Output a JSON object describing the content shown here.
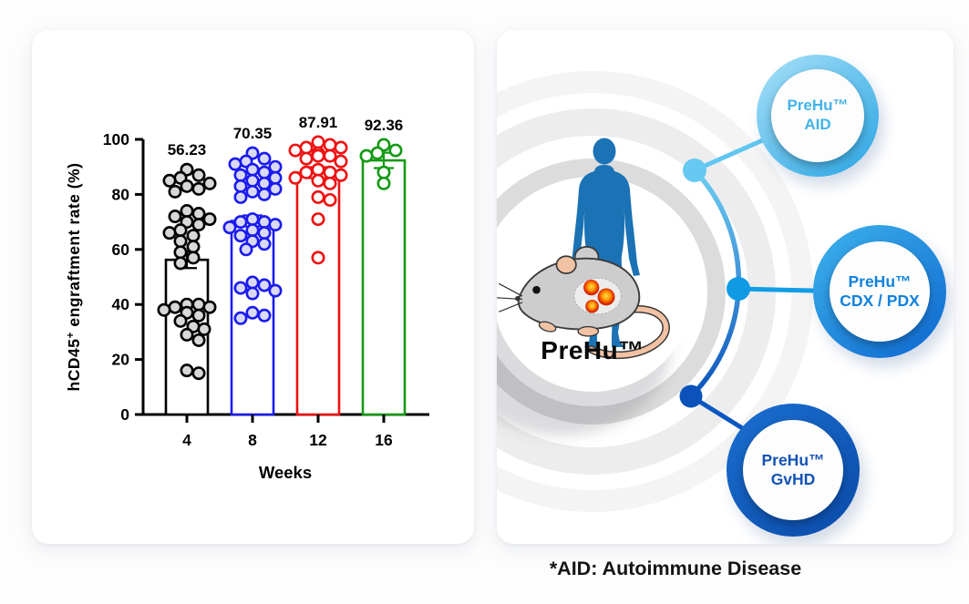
{
  "caption": "*AID: Autoimmune Disease",
  "chart_data": {
    "type": "bar",
    "subtype": "bar_with_beeswarm_scatter_and_error_bars",
    "title": "",
    "xlabel": "Weeks",
    "ylabel": "hCD45+ engraftment rate (%)",
    "ylabel_parts": {
      "pre": "hCD45",
      "sup": "+",
      "post": " engraftment rate (%)"
    },
    "ylim": [
      0,
      100
    ],
    "yticks": [
      0,
      20,
      40,
      60,
      80,
      100
    ],
    "grid": false,
    "legend": null,
    "categories": [
      "4",
      "8",
      "12",
      "16"
    ],
    "series": [
      {
        "name": "Week 4",
        "mean": 56.23,
        "mean_label": "56.23",
        "sem": 3.0,
        "color": "#000000",
        "point_fill": "#d8d8d8",
        "values": [
          89,
          87,
          86,
          85,
          84,
          83,
          82,
          81,
          74,
          73,
          72,
          71,
          70,
          69,
          67,
          66,
          65,
          63,
          61,
          59,
          57,
          55,
          40,
          40,
          39,
          39,
          38,
          37,
          36,
          34,
          32,
          31,
          29,
          27,
          16,
          15
        ]
      },
      {
        "name": "Week 8",
        "mean": 70.35,
        "mean_label": "70.35",
        "sem": 2.0,
        "color": "#1b1bef",
        "point_fill": "#dadaf4",
        "values": [
          95,
          93,
          92,
          91,
          90,
          89,
          88,
          87,
          86,
          85,
          84,
          83,
          82,
          81,
          80,
          79,
          71,
          70,
          70,
          69,
          68,
          67,
          66,
          65,
          63,
          62,
          60,
          48,
          47,
          46,
          45,
          44,
          37,
          36,
          35
        ]
      },
      {
        "name": "Week 12",
        "mean": 87.91,
        "mean_label": "87.91",
        "sem": 2.0,
        "color": "#ee1111",
        "point_fill": "#ffffff",
        "values": [
          99,
          98,
          97,
          97,
          96,
          95,
          94,
          94,
          93,
          92,
          89,
          88,
          88,
          87,
          86,
          85,
          84,
          79,
          78,
          71,
          57
        ]
      },
      {
        "name": "Week 16",
        "mean": 92.36,
        "mean_label": "92.36",
        "sem": 2.8,
        "color": "#149a14",
        "point_fill": "#ffffff",
        "values": [
          98,
          96,
          95,
          94,
          88,
          84
        ]
      }
    ]
  },
  "diagram": {
    "center_label": "PreHu™",
    "colors": {
      "human": "#1b72b4",
      "arc_from": "#6fcdf2",
      "arc_to": "#0b53bb",
      "ring_gray_inner": "#dcdcdc",
      "ring_gray_outer": "#ededed"
    },
    "nodes": [
      {
        "id": "aid",
        "line1": "PreHu™",
        "line2": "AID",
        "ring_from": "#a8e1f8",
        "ring_to": "#29a4e3",
        "text_color": "#41b3e9",
        "line_color": "#5fc6f0",
        "dot_color": "#66c9f1"
      },
      {
        "id": "cdx-pdx",
        "line1": "PreHu™",
        "line2": "CDX / PDX",
        "ring_from": "#3eb3ec",
        "ring_to": "#0d66cf",
        "text_color": "#1182dd",
        "line_color": "#129de6",
        "dot_color": "#109ae4"
      },
      {
        "id": "gvhd",
        "line1": "PreHu™",
        "line2": "GvHD",
        "ring_from": "#1a6fd0",
        "ring_to": "#0b4aa8",
        "text_color": "#1353b4",
        "line_color": "#0b57c1",
        "dot_color": "#0b53bb"
      }
    ]
  }
}
